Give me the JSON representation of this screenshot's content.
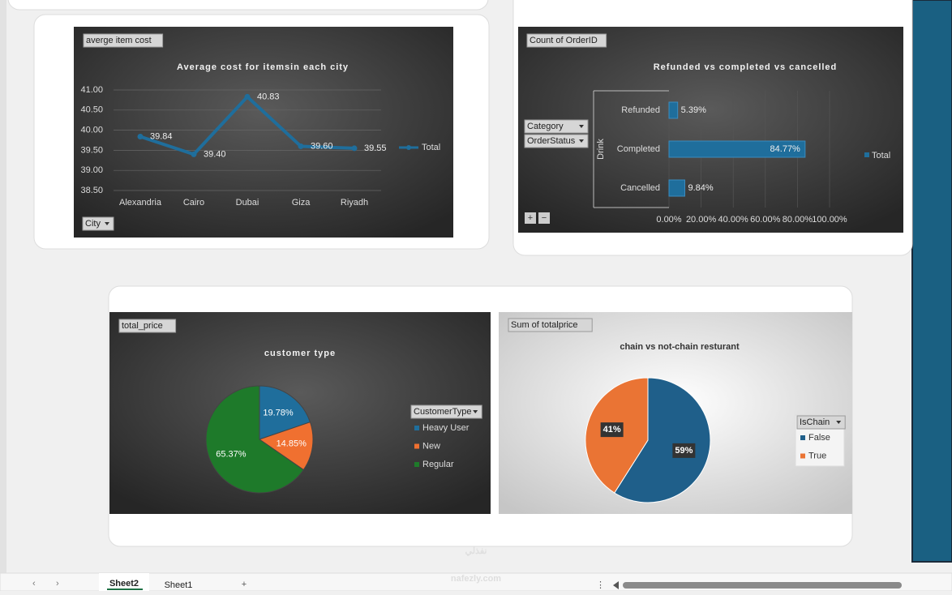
{
  "chart_data": [
    {
      "type": "line",
      "field_label": "averge item cost",
      "title": "Average cost for itemsin each city",
      "categories": [
        "Alexandria",
        "Cairo",
        "Dubai",
        "Giza",
        "Riyadh"
      ],
      "series": [
        {
          "name": "Total",
          "color": "#1f6e9c",
          "values": [
            39.84,
            39.4,
            40.83,
            39.6,
            39.55
          ],
          "value_labels": [
            "39.84",
            "39.40",
            "40.83",
            "39.60",
            "39.55"
          ]
        }
      ],
      "ylim": [
        38.5,
        41
      ],
      "yticks": [
        {
          "value": 38.5,
          "label": "38.50"
        },
        {
          "value": 39,
          "label": "39.00"
        },
        {
          "value": 39.5,
          "label": "39.50"
        },
        {
          "value": 40,
          "label": "40.00"
        },
        {
          "value": 40.5,
          "label": "40.50"
        },
        {
          "value": 41,
          "label": "41.00"
        }
      ],
      "grid": true,
      "filters": [
        "City"
      ]
    },
    {
      "type": "bar",
      "orientation": "horizontal",
      "field_label": "Count of OrderID",
      "title": "Refunded vs completed vs cancelled",
      "group": "Drink",
      "categories": [
        "Refunded",
        "Completed",
        "Cancelled"
      ],
      "series": [
        {
          "name": "Total",
          "color": "#1f6e9c",
          "values": [
            5.39,
            84.77,
            9.84
          ],
          "value_labels": [
            "5.39%",
            "84.77%",
            "9.84%"
          ]
        }
      ],
      "xlim": [
        0,
        100
      ],
      "xticks": [
        {
          "value": 0,
          "label": "0.00%"
        },
        {
          "value": 20,
          "label": "20.00%"
        },
        {
          "value": 40,
          "label": "40.00%"
        },
        {
          "value": 60,
          "label": "60.00%"
        },
        {
          "value": 80,
          "label": "80.00%"
        },
        {
          "value": 100,
          "label": "100.00%"
        }
      ],
      "grid": true,
      "filters": [
        "Category",
        "OrderStatus"
      ]
    },
    {
      "type": "pie",
      "field_label": "total_price",
      "title": "customer type",
      "legend_title": "CustomerType",
      "categories": [
        "Heavy User",
        "New",
        "Regular"
      ],
      "values": [
        19.78,
        14.85,
        65.37
      ],
      "value_labels": [
        "19.78%",
        "14.85%",
        "65.37%"
      ],
      "colors": [
        "#1f6e9c",
        "#f07030",
        "#1e7a2a"
      ]
    },
    {
      "type": "pie",
      "field_label": "Sum of totalprice",
      "title": "chain vs not-chain resturant",
      "legend_title": "IsChain",
      "categories": [
        "False",
        "True"
      ],
      "values": [
        59,
        41
      ],
      "value_labels": [
        "59%",
        "41%"
      ],
      "colors": [
        "#1f5f8a",
        "#ea7434"
      ]
    }
  ],
  "ui": {
    "tabs": [
      "Sheet2",
      "Sheet1"
    ],
    "watermark_ar": "نفذلي",
    "watermark": "nafezly.com"
  }
}
